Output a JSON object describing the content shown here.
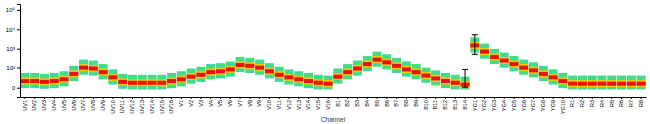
{
  "chart_data": {
    "type": "heatmap",
    "x_label": "Channel",
    "categories": [
      "UV1",
      "UV2",
      "UV3",
      "UV4",
      "UV5",
      "UV6",
      "UV7",
      "UV8",
      "UV9",
      "UV10",
      "UV11",
      "UV12",
      "UV13",
      "UV14",
      "UV15",
      "UV16",
      "V1",
      "V2",
      "V3",
      "V4",
      "V5",
      "V6",
      "V7",
      "V8",
      "V9",
      "V10",
      "V11",
      "V12",
      "V13",
      "V14",
      "V15",
      "V16",
      "B1",
      "B2",
      "B3",
      "B4",
      "B5",
      "B6",
      "B7",
      "B8",
      "B9",
      "B10",
      "B11",
      "B12",
      "B13",
      "B14",
      "YG1",
      "YG2",
      "YG3",
      "YG4",
      "YG5",
      "YG6",
      "YG7",
      "YG8",
      "YG9",
      "YG10",
      "R1",
      "R2",
      "R3",
      "R4",
      "R5",
      "R6",
      "R7",
      "R8"
    ],
    "values": [
      12,
      12,
      9.9,
      12,
      17,
      41,
      97,
      87,
      53,
      24,
      9.9,
      7.9,
      7.9,
      7.9,
      7.9,
      12,
      17,
      27,
      36,
      53,
      60,
      77,
      137,
      123,
      97,
      60,
      36,
      24,
      17,
      12,
      7.9,
      6.1,
      27,
      53,
      87,
      154,
      267,
      192,
      123,
      77,
      53,
      32,
      20,
      12,
      7.9,
      4.5,
      1482,
      704,
      370,
      239,
      154,
      97,
      68,
      41,
      24,
      12,
      6.1,
      6.1,
      6.1,
      6.1,
      6.1,
      6.1,
      6.1,
      6.1
    ],
    "q1": [
      4.5,
      4.5,
      3.1,
      4.5,
      7.9,
      24,
      60,
      53,
      32,
      12,
      3.1,
      1.8,
      1.8,
      1.8,
      1.8,
      4.5,
      7.9,
      15,
      20,
      32,
      36,
      47,
      87,
      77,
      60,
      36,
      20,
      12,
      7.9,
      4.5,
      1.8,
      0.6,
      15,
      32,
      53,
      97,
      172,
      123,
      77,
      47,
      32,
      17,
      9.9,
      4.5,
      1.8,
      -0.5,
      969,
      459,
      239,
      154,
      97,
      60,
      41,
      24,
      12,
      4.5,
      0.6,
      0.6,
      0.6,
      0.6,
      0.6,
      0.6,
      0.6,
      0.6
    ],
    "q3": [
      24,
      24,
      20,
      24,
      32,
      68,
      154,
      137,
      87,
      41,
      20,
      17,
      17,
      17,
      17,
      24,
      32,
      47,
      60,
      87,
      97,
      123,
      214,
      192,
      154,
      97,
      60,
      41,
      32,
      24,
      17,
      15,
      47,
      87,
      137,
      239,
      412,
      298,
      192,
      123,
      87,
      53,
      36,
      24,
      17,
      12,
      2263,
      1078,
      568,
      370,
      239,
      154,
      109,
      68,
      41,
      24,
      15,
      15,
      15,
      15,
      15,
      15,
      15,
      15
    ],
    "low": [
      -0.5,
      -0.5,
      -1.4,
      -0.5,
      1.8,
      12,
      36,
      32,
      17,
      4.5,
      -1.4,
      -2.3,
      -2.3,
      -2.3,
      -2.3,
      -0.5,
      1.8,
      6.1,
      9.9,
      17,
      20,
      27,
      53,
      47,
      36,
      20,
      9.9,
      4.5,
      1.8,
      -0.5,
      -2.3,
      -2.3,
      6.1,
      17,
      32,
      60,
      109,
      77,
      47,
      27,
      17,
      7.9,
      3.1,
      -0.5,
      -2.3,
      -2.3,
      633,
      298,
      154,
      97,
      60,
      36,
      24,
      12,
      4.5,
      -0.5,
      -2.3,
      -2.3,
      -2.3,
      -2.3,
      -2.3,
      -2.3,
      -2.3,
      -2.3
    ],
    "high": [
      47,
      47,
      41,
      47,
      60,
      123,
      267,
      239,
      154,
      77,
      41,
      36,
      36,
      36,
      36,
      47,
      60,
      87,
      109,
      154,
      172,
      214,
      370,
      332,
      267,
      172,
      109,
      77,
      60,
      47,
      36,
      32,
      87,
      154,
      239,
      412,
      704,
      511,
      332,
      214,
      154,
      97,
      68,
      47,
      36,
      27,
      3839,
      1832,
      969,
      633,
      412,
      267,
      192,
      123,
      77,
      47,
      32,
      32,
      32,
      32,
      32,
      32,
      32,
      32
    ],
    "ranges": [
      {
        "category": "B14",
        "low": 0.6,
        "high": 77
      },
      {
        "category": "YG1",
        "low": 511,
        "high": 5260
      }
    ],
    "log": "y",
    "ylim": [
      -20,
      200000
    ],
    "yticks": [
      0,
      {
        "value": 100,
        "label": "10²"
      },
      {
        "value": 1000,
        "label": "10³"
      },
      {
        "value": 10000,
        "label": "10⁴"
      },
      {
        "value": 100000,
        "label": "10⁵"
      }
    ]
  }
}
